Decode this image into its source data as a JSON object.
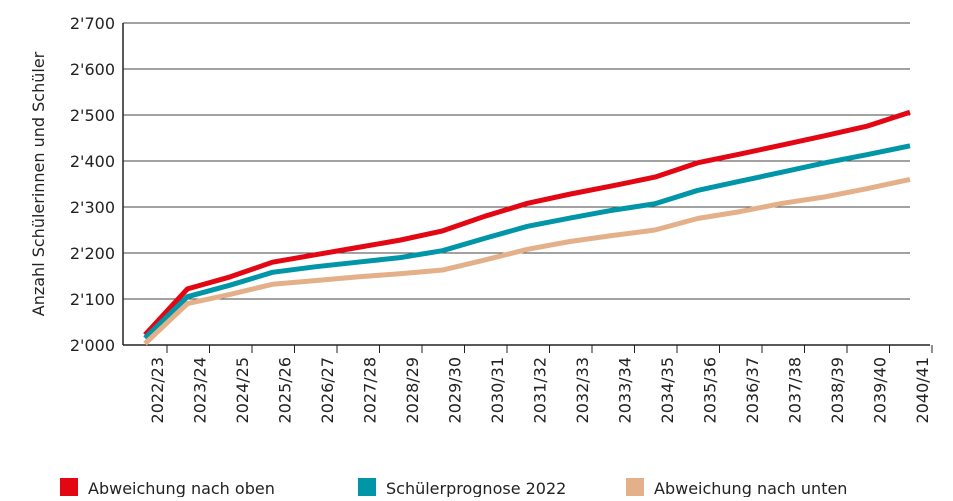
{
  "chart_data": {
    "type": "line",
    "y_label": "Anzahl Schülerinnen und Schüler",
    "categories": [
      "2022/23",
      "2023/24",
      "2024/25",
      "2025/26",
      "2026/27",
      "2027/28",
      "2028/29",
      "2029/30",
      "2030/31",
      "2031/32",
      "2032/33",
      "2033/34",
      "2034/35",
      "2035/36",
      "2036/37",
      "2037/38",
      "2038/39",
      "2039/40",
      "2040/41"
    ],
    "series": [
      {
        "name": "Abweichung nach oben",
        "color": "#e30613",
        "values": [
          2022,
          2122,
          2148,
          2180,
          2196,
          2212,
          2228,
          2248,
          2280,
          2308,
          2328,
          2346,
          2365,
          2396,
          2415,
          2435,
          2455,
          2476,
          2506
        ]
      },
      {
        "name": "Schülerprognose 2022",
        "color": "#0096a8",
        "values": [
          2015,
          2105,
          2130,
          2158,
          2170,
          2180,
          2190,
          2205,
          2232,
          2258,
          2276,
          2293,
          2307,
          2336,
          2356,
          2376,
          2396,
          2414,
          2433
        ]
      },
      {
        "name": "Abweichung nach unten",
        "color": "#e3b08a",
        "values": [
          2003,
          2090,
          2110,
          2132,
          2140,
          2148,
          2155,
          2163,
          2185,
          2208,
          2225,
          2238,
          2250,
          2275,
          2290,
          2308,
          2322,
          2340,
          2360
        ]
      }
    ],
    "ylim": [
      2000,
      2700
    ],
    "yticks": [
      {
        "value": 2000,
        "label": "2'000"
      },
      {
        "value": 2100,
        "label": "2'100"
      },
      {
        "value": 2200,
        "label": "2'200"
      },
      {
        "value": 2300,
        "label": "2'300"
      },
      {
        "value": 2400,
        "label": "2'400"
      },
      {
        "value": 2500,
        "label": "2'500"
      },
      {
        "value": 2600,
        "label": "2'600"
      },
      {
        "value": 2700,
        "label": "2'700"
      }
    ],
    "grid": true,
    "legend": "bottom"
  }
}
